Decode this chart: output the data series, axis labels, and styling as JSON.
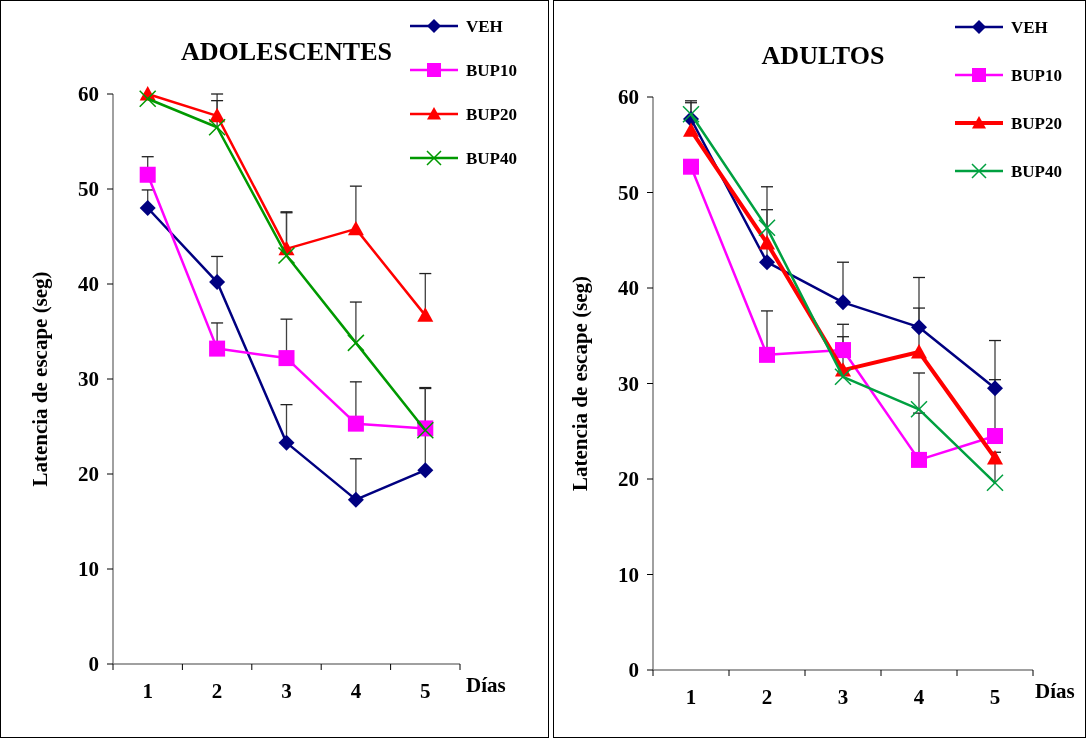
{
  "chart_data": [
    {
      "type": "line",
      "title": "ADOLESCENTES",
      "xlabel": "Días",
      "ylabel": "Latencia de escape (seg)",
      "categories": [
        "1",
        "2",
        "3",
        "4",
        "5"
      ],
      "ylim": [
        0,
        60
      ],
      "yticks": [
        0,
        10,
        20,
        30,
        40,
        50,
        60
      ],
      "grid": false,
      "legend": "top right",
      "series": [
        {
          "name": "VEH",
          "color": "#000080",
          "marker": "diamond",
          "values": [
            48.0,
            40.2,
            23.3,
            17.3,
            20.4
          ],
          "errors": [
            [
              48.0,
              49.9
            ],
            [
              40.2,
              42.9
            ],
            [
              23.3,
              27.3
            ],
            [
              17.3,
              21.6
            ],
            [
              20.4,
              29.0
            ]
          ]
        },
        {
          "name": "BUP10",
          "color": "#ff00ff",
          "marker": "square",
          "values": [
            51.5,
            33.2,
            32.2,
            25.3,
            24.8
          ],
          "errors": [
            [
              51.5,
              53.4
            ],
            [
              33.2,
              35.9
            ],
            [
              32.2,
              36.3
            ],
            [
              25.3,
              29.7
            ],
            null
          ]
        },
        {
          "name": "BUP20",
          "color": "#ff0000",
          "marker": "triangle",
          "values": [
            60.0,
            57.7,
            43.7,
            45.8,
            36.7
          ],
          "errors": [
            null,
            [
              57.7,
              60.0
            ],
            [
              43.7,
              47.6
            ],
            [
              45.8,
              50.3
            ],
            [
              36.7,
              41.1
            ]
          ]
        },
        {
          "name": "BUP40",
          "color": "#009900",
          "marker": "cross",
          "values": [
            59.5,
            56.5,
            43.0,
            33.8,
            24.6
          ],
          "errors": [
            null,
            [
              56.5,
              59.3
            ],
            [
              43.0,
              47.5
            ],
            [
              33.8,
              38.1
            ],
            [
              24.6,
              29.1
            ]
          ]
        }
      ]
    },
    {
      "type": "line",
      "title": "ADULTOS",
      "xlabel": "Días",
      "ylabel": "Latencia de escape (seg)",
      "categories": [
        "1",
        "2",
        "3",
        "4",
        "5"
      ],
      "ylim": [
        0,
        60
      ],
      "yticks": [
        0,
        10,
        20,
        30,
        40,
        50,
        60
      ],
      "grid": false,
      "legend": "top right",
      "series": [
        {
          "name": "VEH",
          "color": "#000080",
          "marker": "diamond",
          "values": [
            57.7,
            42.7,
            38.5,
            35.9,
            29.5
          ],
          "errors": [
            [
              57.7,
              59.6
            ],
            [
              42.7,
              48.2
            ],
            [
              38.5,
              42.7
            ],
            [
              35.9,
              41.1
            ],
            [
              29.5,
              34.5
            ]
          ]
        },
        {
          "name": "BUP10",
          "color": "#ff00ff",
          "marker": "square",
          "values": [
            52.7,
            33.0,
            33.5,
            22.0,
            24.5
          ],
          "errors": [
            null,
            [
              33.0,
              37.6
            ],
            [
              33.5,
              36.2
            ],
            [
              22.0,
              26.9
            ],
            [
              24.5,
              30.4
            ]
          ]
        },
        {
          "name": "BUP20",
          "color": "#ff0000",
          "marker": "triangle",
          "values": [
            56.5,
            44.7,
            31.4,
            33.3,
            22.2
          ],
          "errors": [
            null,
            null,
            [
              31.4,
              34.9
            ],
            [
              33.3,
              37.9
            ],
            null
          ]
        },
        {
          "name": "BUP40",
          "color": "#00a040",
          "marker": "cross",
          "values": [
            58.2,
            46.3,
            30.7,
            27.3,
            19.6
          ],
          "errors": [
            [
              58.2,
              59.4
            ],
            [
              46.3,
              50.6
            ],
            null,
            [
              27.3,
              31.1
            ],
            [
              19.6,
              22.8
            ]
          ]
        }
      ]
    }
  ]
}
